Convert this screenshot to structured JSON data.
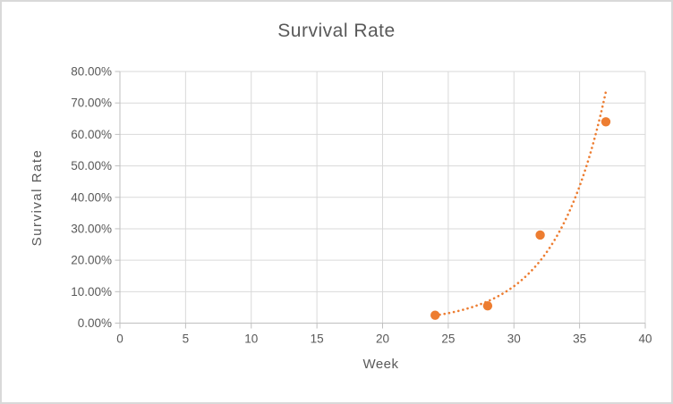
{
  "window": {
    "background": "#FFFFFF",
    "border_color": "#D9D9D9"
  },
  "chart_data": {
    "type": "scatter",
    "title": "Survival Rate",
    "xlabel": "Week",
    "ylabel": "Survival Rate",
    "xlim": [
      0,
      40
    ],
    "ylim": [
      0,
      0.8
    ],
    "x_tick_labels": [
      "0",
      "5",
      "10",
      "15",
      "20",
      "25",
      "30",
      "35",
      "40"
    ],
    "y_tick_labels": [
      "0.00%",
      "10.00%",
      "20.00%",
      "30.00%",
      "40.00%",
      "50.00%",
      "60.00%",
      "70.00%",
      "80.00%"
    ],
    "grid": true,
    "legend": "none",
    "series": [
      {
        "name": "Survival Rate",
        "marker": "circle",
        "color": "#ED7D31",
        "points": [
          {
            "x": 24,
            "y": 0.025
          },
          {
            "x": 28,
            "y": 0.055
          },
          {
            "x": 32,
            "y": 0.28
          },
          {
            "x": 37,
            "y": 0.64
          }
        ]
      }
    ],
    "trendline": {
      "type": "exponential",
      "style": "dotted",
      "color": "#ED7D31",
      "a": 4.47e-05,
      "b": 0.2624,
      "x_start": 24,
      "x_end": 37.05
    },
    "colors": {
      "series": "#ED7D31",
      "gridline": "#D9D9D9",
      "axis_line": "#BFBFBF",
      "text": "#595959"
    }
  }
}
